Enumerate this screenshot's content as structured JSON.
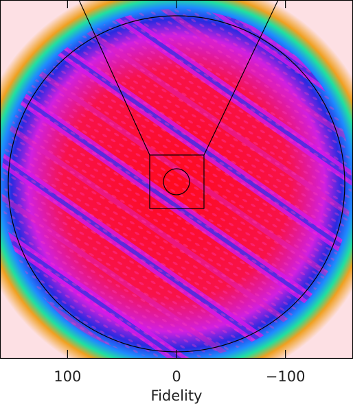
{
  "chart_data": {
    "type": "image",
    "xlabel": "Fidelity",
    "xlim": [
      162,
      -162
    ],
    "xticks": [
      100,
      0,
      {
        "value": -100,
        "label": "−100"
      }
    ]
  }
}
